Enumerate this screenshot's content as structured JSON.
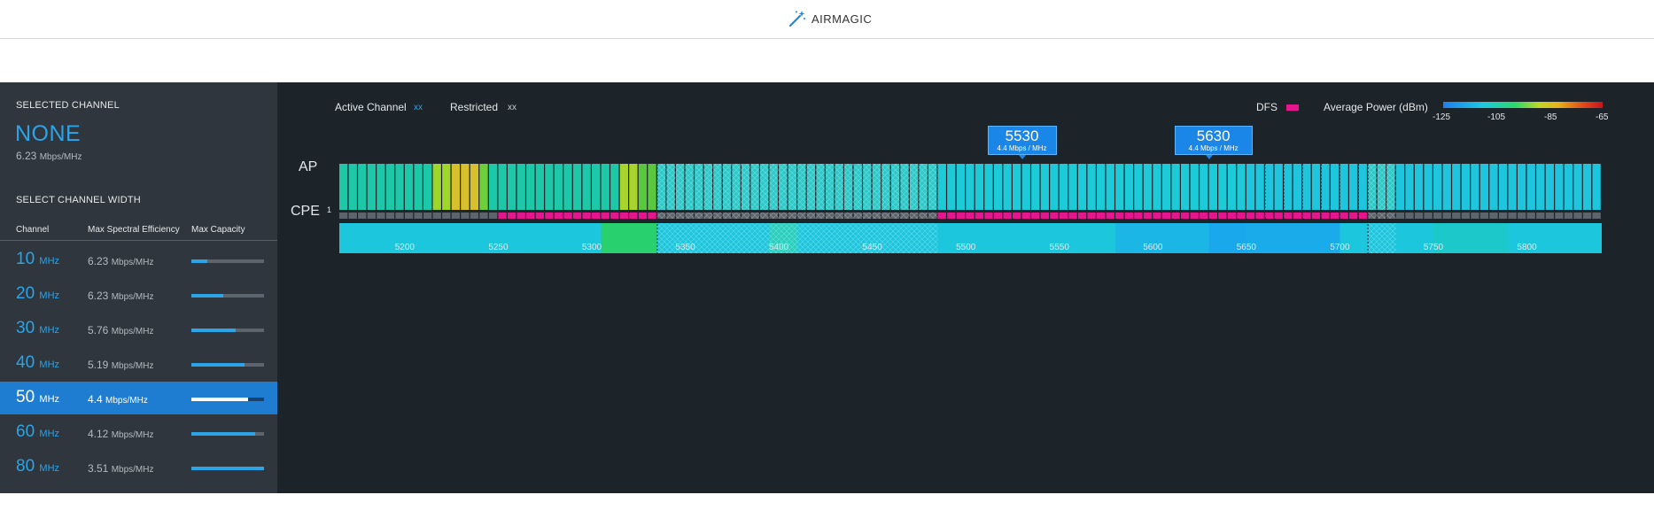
{
  "header": {
    "brand": "AIRMAGIC",
    "brand_icon": "magic-wand-icon"
  },
  "sidebar": {
    "selected_heading": "SELECTED CHANNEL",
    "selected_value": "NONE",
    "selected_efficiency": "6.23",
    "efficiency_unit": "Mbps/MHz",
    "width_heading": "SELECT CHANNEL WIDTH",
    "columns": {
      "channel": "Channel",
      "efficiency": "Max Spectral Efficiency",
      "capacity": "Max Capacity"
    },
    "width_unit": "MHz",
    "widths": [
      {
        "value": "10",
        "efficiency": "6.23",
        "capacity": 0.22,
        "selected": false
      },
      {
        "value": "20",
        "efficiency": "6.23",
        "capacity": 0.44,
        "selected": false
      },
      {
        "value": "30",
        "efficiency": "5.76",
        "capacity": 0.61,
        "selected": false
      },
      {
        "value": "40",
        "efficiency": "5.19",
        "capacity": 0.73,
        "selected": false
      },
      {
        "value": "50",
        "efficiency": "4.4",
        "capacity": 0.78,
        "selected": true
      },
      {
        "value": "60",
        "efficiency": "4.12",
        "capacity": 0.88,
        "selected": false
      },
      {
        "value": "80",
        "efficiency": "3.51",
        "capacity": 1.0,
        "selected": false
      }
    ]
  },
  "legend": {
    "active_channel": "Active Channel",
    "active_marker": "xx",
    "restricted": "Restricted",
    "restricted_marker": "xx",
    "dfs": "DFS",
    "average_power": "Average Power (dBm)",
    "power_ticks": [
      "-125",
      "-105",
      "-85",
      "-65"
    ],
    "colors": {
      "active": "#2ba4e8",
      "dfs": "#e5158d",
      "restricted": "#9aa3ab"
    }
  },
  "spectrum": {
    "ap_label": "AP",
    "cpe_label": "CPE",
    "cpe_index": "1",
    "freq_ticks": [
      "5200",
      "5250",
      "5300",
      "5350",
      "5400",
      "5450",
      "5500",
      "5550",
      "5600",
      "5650",
      "5700",
      "5750",
      "5800"
    ],
    "freq_range": [
      5165,
      5840
    ],
    "restricted_ranges": [
      [
        5335,
        5485
      ],
      [
        5715,
        5730
      ]
    ],
    "dfs_ranges": [
      [
        5250,
        5335
      ],
      [
        5485,
        5660
      ],
      [
        5660,
        5715
      ]
    ],
    "callouts": [
      {
        "freq": "5530",
        "efficiency": "4.4 Mbps / MHz"
      },
      {
        "freq": "5630",
        "efficiency": "4.4 Mbps / MHz"
      }
    ]
  }
}
